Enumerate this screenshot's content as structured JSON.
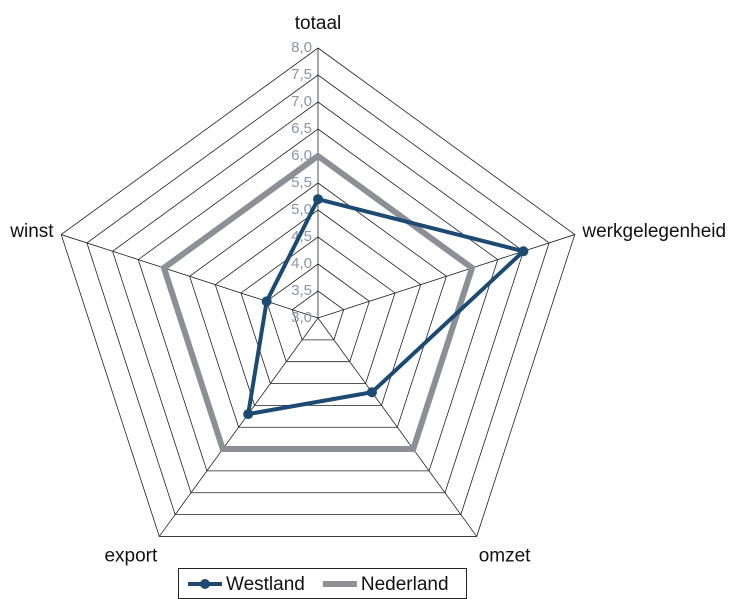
{
  "chart_data": {
    "type": "radar",
    "categories": [
      "totaal",
      "werkgelegenheid",
      "omzet",
      "export",
      "winst"
    ],
    "series": [
      {
        "name": "Westland",
        "color": "#1b4a73",
        "marker": true,
        "values": [
          5.2,
          7.0,
          4.7,
          5.2,
          4.0
        ]
      },
      {
        "name": "Nederland",
        "color": "#8c9096",
        "marker": false,
        "values": [
          6.0,
          6.0,
          6.0,
          6.0,
          6.0
        ]
      }
    ],
    "ylim": [
      3,
      8
    ],
    "yticks": [
      {
        "value": 3,
        "label": "3,0"
      },
      {
        "value": 3.5,
        "label": "3,5"
      },
      {
        "value": 4,
        "label": "4,0"
      },
      {
        "value": 4.5,
        "label": "4,5"
      },
      {
        "value": 5,
        "label": "5,0"
      },
      {
        "value": 5.5,
        "label": "5,5"
      },
      {
        "value": 6,
        "label": "6,0"
      },
      {
        "value": 6.5,
        "label": "6,5"
      },
      {
        "value": 7,
        "label": "7,0"
      },
      {
        "value": 7.5,
        "label": "7,5"
      },
      {
        "value": 8,
        "label": "8,0"
      }
    ],
    "grid": true,
    "legend": "bottom"
  }
}
